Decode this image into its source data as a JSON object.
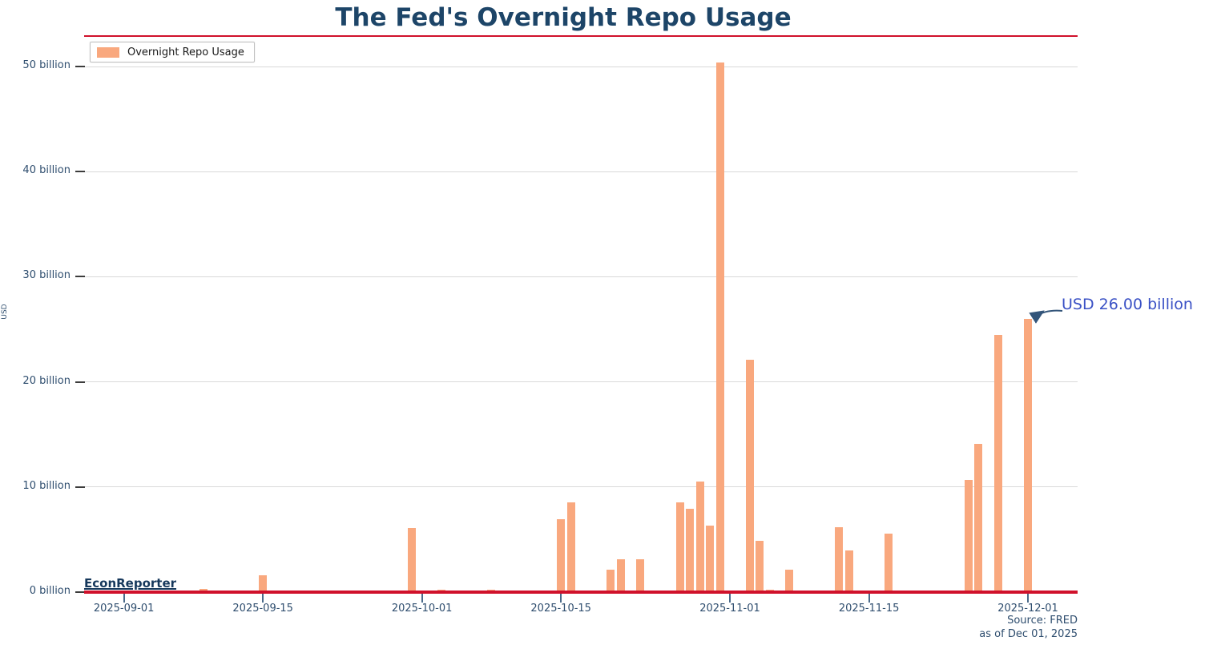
{
  "title": "The Fed's Overnight Repo Usage",
  "legend": {
    "label": "Overnight Repo Usage"
  },
  "annotation": {
    "text": "USD 26.00 billion"
  },
  "watermark": "EconReporter",
  "source": {
    "line1": "Source: FRED",
    "line2": "as of Dec 01, 2025"
  },
  "colors": {
    "bar": "#f9a87e",
    "accent_red": "#d0112b",
    "title_text": "#1d4568",
    "axis_text": "#2e4d6e",
    "annotation_text": "#3a51c5",
    "arrow": "#33557a",
    "gridline": "#d9d9d9"
  },
  "chart_data": {
    "type": "bar",
    "title": "The Fed's Overnight Repo Usage",
    "series_name": "Overnight Repo Usage",
    "xlabel": "",
    "ylabel": "USD",
    "unit": "billions of USD",
    "grid": true,
    "legend_position": "top-left",
    "x_domain": [
      "2025-08-28",
      "2025-12-06"
    ],
    "ylim": [
      0,
      52.9
    ],
    "x_ticks": [
      "2025-09-01",
      "2025-09-15",
      "2025-10-01",
      "2025-10-15",
      "2025-11-01",
      "2025-11-15",
      "2025-12-01"
    ],
    "y_ticks": [
      {
        "value": 0,
        "label": "0 billion"
      },
      {
        "value": 10,
        "label": "10 billion"
      },
      {
        "value": 20,
        "label": "20 billion"
      },
      {
        "value": 30,
        "label": "30 billion"
      },
      {
        "value": 40,
        "label": "40 billion"
      },
      {
        "value": 50,
        "label": "50 billion"
      }
    ],
    "x": [
      "2025-09-09",
      "2025-09-15",
      "2025-09-30",
      "2025-10-03",
      "2025-10-08",
      "2025-10-15",
      "2025-10-16",
      "2025-10-20",
      "2025-10-21",
      "2025-10-23",
      "2025-10-27",
      "2025-10-28",
      "2025-10-29",
      "2025-10-30",
      "2025-10-31",
      "2025-11-03",
      "2025-11-04",
      "2025-11-05",
      "2025-11-07",
      "2025-11-12",
      "2025-11-13",
      "2025-11-17",
      "2025-11-25",
      "2025-11-26",
      "2025-11-28",
      "2025-12-01"
    ],
    "values": [
      0.3,
      1.6,
      6.1,
      0.2,
      0.2,
      6.9,
      8.5,
      2.1,
      3.1,
      3.1,
      8.5,
      7.9,
      10.5,
      6.3,
      50.4,
      22.1,
      4.9,
      0.2,
      2.1,
      6.2,
      4.0,
      5.6,
      10.7,
      14.1,
      24.5,
      26.0
    ],
    "annotated_point": {
      "x": "2025-12-01",
      "value": 26.0,
      "label": "USD 26.00 billion"
    }
  }
}
